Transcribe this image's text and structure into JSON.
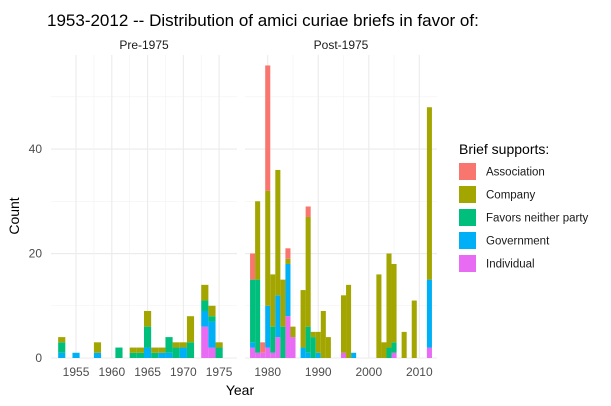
{
  "chart_data": {
    "type": "bar",
    "stacked": true,
    "title": "1953-2012 -- Distribution of amici curiae briefs in favor of:",
    "xlabel": "Year",
    "ylabel": "Count",
    "ylim": [
      0,
      58
    ],
    "yticks": [
      0,
      20,
      40
    ],
    "grid": true,
    "legend_position": "right",
    "legend_title": "Brief supports:",
    "series": [
      {
        "name": "Association",
        "color": "#F8766D"
      },
      {
        "name": "Company",
        "color": "#A3A500"
      },
      {
        "name": "Favors neither party",
        "color": "#00BF7D"
      },
      {
        "name": "Government",
        "color": "#00B0F6"
      },
      {
        "name": "Individual",
        "color": "#E76BF3"
      }
    ],
    "panels": [
      {
        "label": "Pre-1975",
        "xlim": [
          1951.5,
          1977.5
        ],
        "xticks": [
          1955,
          1960,
          1965,
          1970,
          1975
        ],
        "bars": [
          {
            "x": 1953,
            "values": [
              0,
              1,
              2,
              1,
              0
            ]
          },
          {
            "x": 1955,
            "values": [
              0,
              0,
              0,
              1,
              0
            ]
          },
          {
            "x": 1958,
            "values": [
              0,
              2,
              0,
              1,
              0
            ]
          },
          {
            "x": 1961,
            "values": [
              0,
              0,
              2,
              0,
              0
            ]
          },
          {
            "x": 1963,
            "values": [
              0,
              1,
              1,
              0,
              0
            ]
          },
          {
            "x": 1964,
            "values": [
              0,
              1,
              1,
              0,
              0
            ]
          },
          {
            "x": 1965,
            "values": [
              0,
              3,
              4,
              2,
              0
            ]
          },
          {
            "x": 1966,
            "values": [
              0,
              1,
              1,
              0,
              0
            ]
          },
          {
            "x": 1967,
            "values": [
              0,
              1,
              0,
              1,
              0
            ]
          },
          {
            "x": 1968,
            "values": [
              0,
              0,
              3,
              1,
              0
            ]
          },
          {
            "x": 1969,
            "values": [
              0,
              1,
              2,
              0,
              0
            ]
          },
          {
            "x": 1970,
            "values": [
              0,
              1,
              0,
              2,
              0
            ]
          },
          {
            "x": 1971,
            "values": [
              0,
              5,
              3,
              0,
              0
            ]
          },
          {
            "x": 1973,
            "values": [
              0,
              3,
              2,
              3,
              6
            ]
          },
          {
            "x": 1974,
            "values": [
              0,
              2,
              1,
              5,
              2
            ]
          },
          {
            "x": 1975,
            "values": [
              0,
              1,
              2,
              0,
              0
            ]
          }
        ]
      },
      {
        "label": "Post-1975",
        "xlim": [
          1975.5,
          2013.5
        ],
        "xticks": [
          1980,
          1990,
          2000,
          2010
        ],
        "bars": [
          {
            "x": 1977,
            "values": [
              5,
              0,
              12,
              1,
              2
            ]
          },
          {
            "x": 1978,
            "values": [
              0,
              15,
              14,
              0,
              1
            ]
          },
          {
            "x": 1979,
            "values": [
              2,
              0,
              0,
              0,
              1
            ]
          },
          {
            "x": 1980,
            "values": [
              24,
              22,
              0,
              8,
              2
            ]
          },
          {
            "x": 1981,
            "values": [
              0,
              10,
              5,
              0,
              1
            ]
          },
          {
            "x": 1982,
            "values": [
              0,
              24,
              0,
              8,
              4
            ]
          },
          {
            "x": 1983,
            "values": [
              0,
              9,
              6,
              0,
              0
            ]
          },
          {
            "x": 1984,
            "values": [
              2,
              1,
              0,
              10,
              8
            ]
          },
          {
            "x": 1985,
            "values": [
              0,
              2,
              0,
              0,
              4
            ]
          },
          {
            "x": 1987,
            "values": [
              0,
              11,
              0,
              2,
              0
            ]
          },
          {
            "x": 1988,
            "values": [
              2,
              21,
              5,
              1,
              0
            ]
          },
          {
            "x": 1989,
            "values": [
              0,
              1,
              4,
              0,
              0
            ]
          },
          {
            "x": 1990,
            "values": [
              0,
              4,
              0,
              1,
              0
            ]
          },
          {
            "x": 1991,
            "values": [
              0,
              9,
              0,
              0,
              0
            ]
          },
          {
            "x": 1992,
            "values": [
              0,
              4,
              0,
              0,
              0
            ]
          },
          {
            "x": 1995,
            "values": [
              0,
              11,
              0,
              0,
              1
            ]
          },
          {
            "x": 1996,
            "values": [
              0,
              14,
              0,
              0,
              0
            ]
          },
          {
            "x": 1997,
            "values": [
              0,
              0,
              0,
              1,
              0
            ]
          },
          {
            "x": 2002,
            "values": [
              0,
              16,
              0,
              0,
              0
            ]
          },
          {
            "x": 2003,
            "values": [
              0,
              3,
              0,
              0,
              0
            ]
          },
          {
            "x": 2004,
            "values": [
              0,
              18,
              2,
              0,
              0
            ]
          },
          {
            "x": 2005,
            "values": [
              0,
              15,
              2,
              0,
              1
            ]
          },
          {
            "x": 2007,
            "values": [
              0,
              5,
              0,
              0,
              0
            ]
          },
          {
            "x": 2009,
            "values": [
              0,
              11,
              0,
              0,
              0
            ]
          },
          {
            "x": 2012,
            "values": [
              0,
              33,
              0,
              13,
              2
            ]
          }
        ]
      }
    ]
  }
}
